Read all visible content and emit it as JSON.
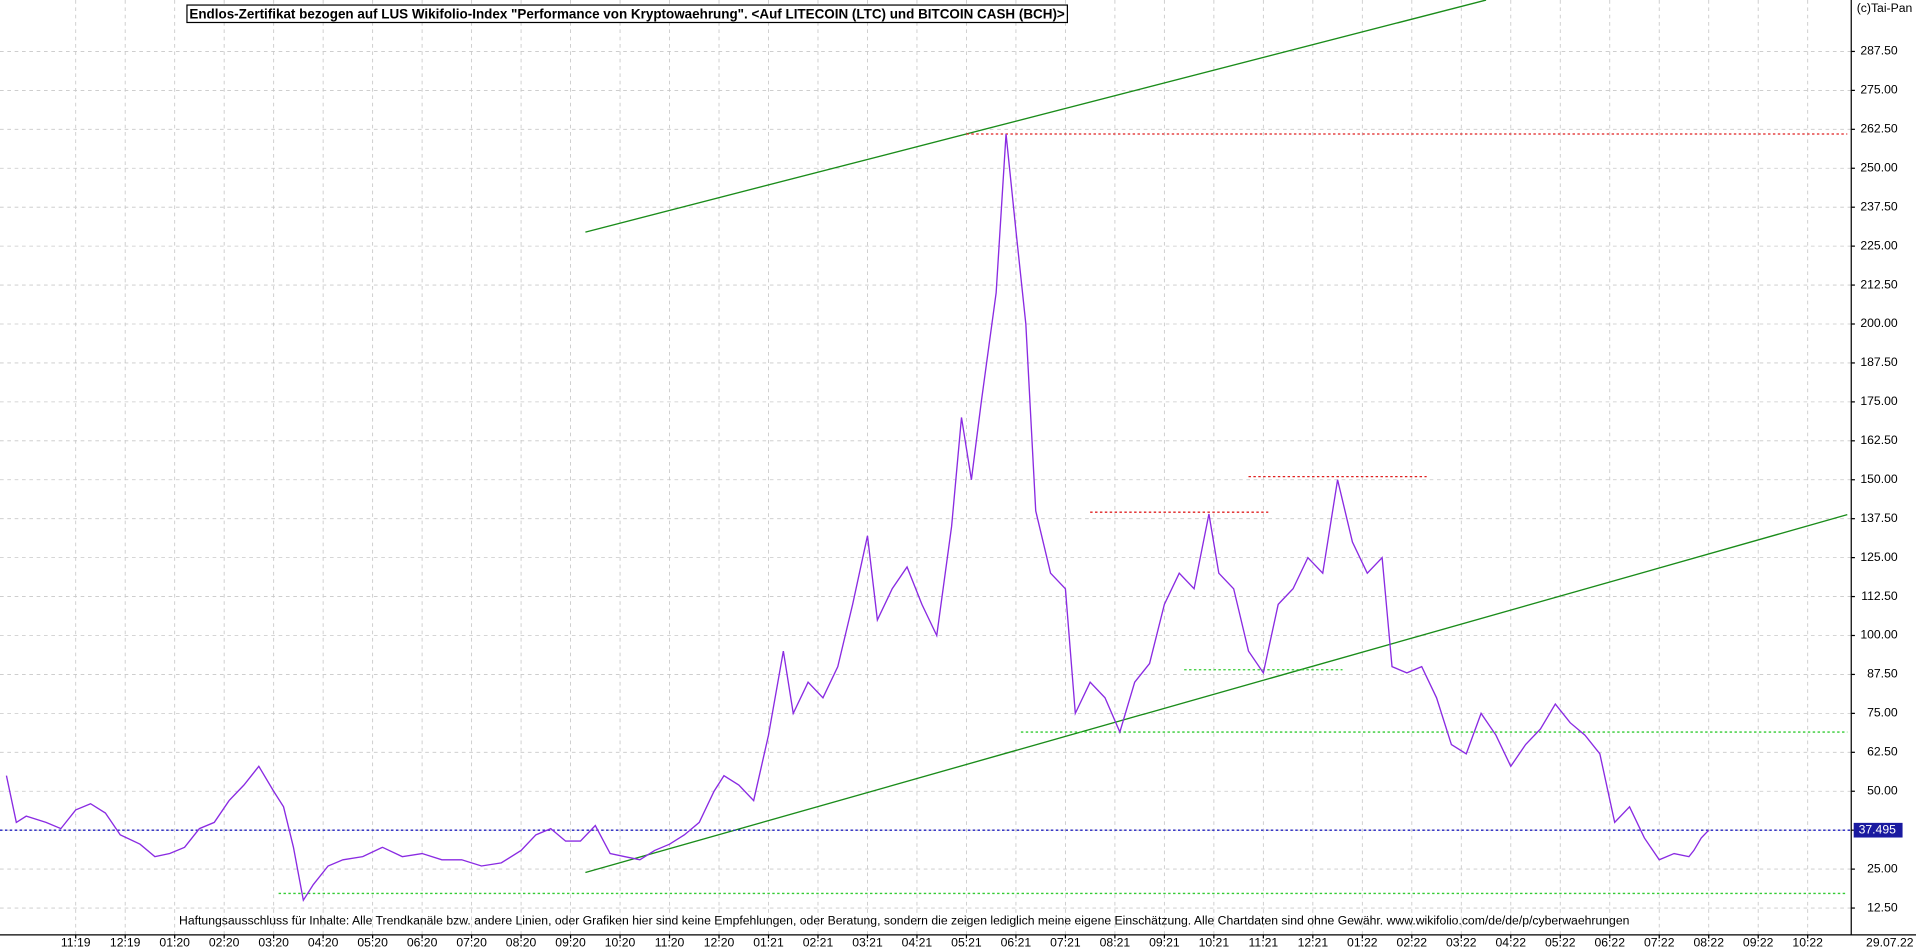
{
  "chart_data": {
    "type": "line",
    "title": "Endlos-Zertifikat bezogen auf LUS Wikifolio-Index \"Performance von Kryptowaehrung\". <Auf LITECOIN (LTC) und BITCOIN CASH (BCH)>",
    "copyright": "(c)Tai-Pan",
    "disclaimer": "Haftungsausschluss für Inhalte: Alle Trendkanäle bzw. andere Linien, oder Grafiken hier sind keine Empfehlungen, oder Beratung, sondern die zeigen lediglich meine eigene Einschätzung. Alle Chartdaten sind ohne Gewähr.  www.wikifolio.com/de/de/p/cyberwaehrungen",
    "date_label": "29.07.22",
    "last_value": {
      "value": 37.495,
      "label": "37.495"
    },
    "grid": true,
    "xlim": [
      -1.53,
      35.88
    ],
    "ylim": [
      3.9,
      304
    ],
    "xticks": [
      {
        "value": 0,
        "label": "11:19"
      },
      {
        "value": 1,
        "label": "12:19"
      },
      {
        "value": 2,
        "label": "01:20"
      },
      {
        "value": 3,
        "label": "02:20"
      },
      {
        "value": 4,
        "label": "03:20"
      },
      {
        "value": 5,
        "label": "04:20"
      },
      {
        "value": 6,
        "label": "05:20"
      },
      {
        "value": 7,
        "label": "06:20"
      },
      {
        "value": 8,
        "label": "07:20"
      },
      {
        "value": 9,
        "label": "08:20"
      },
      {
        "value": 10,
        "label": "09:20"
      },
      {
        "value": 11,
        "label": "10:20"
      },
      {
        "value": 12,
        "label": "11:20"
      },
      {
        "value": 13,
        "label": "12:20"
      },
      {
        "value": 14,
        "label": "01:21"
      },
      {
        "value": 15,
        "label": "02:21"
      },
      {
        "value": 16,
        "label": "03:21"
      },
      {
        "value": 17,
        "label": "04:21"
      },
      {
        "value": 18,
        "label": "05:21"
      },
      {
        "value": 19,
        "label": "06:21"
      },
      {
        "value": 20,
        "label": "07:21"
      },
      {
        "value": 21,
        "label": "08:21"
      },
      {
        "value": 22,
        "label": "09:21"
      },
      {
        "value": 23,
        "label": "10:21"
      },
      {
        "value": 24,
        "label": "11:21"
      },
      {
        "value": 25,
        "label": "12:21"
      },
      {
        "value": 26,
        "label": "01:22"
      },
      {
        "value": 27,
        "label": "02:22"
      },
      {
        "value": 28,
        "label": "03:22"
      },
      {
        "value": 29,
        "label": "04:22"
      },
      {
        "value": 30,
        "label": "05:22"
      },
      {
        "value": 31,
        "label": "06:22"
      },
      {
        "value": 32,
        "label": "07:22"
      },
      {
        "value": 33,
        "label": "08:22"
      },
      {
        "value": 34,
        "label": "09:22"
      },
      {
        "value": 35,
        "label": "10:22"
      }
    ],
    "yticks": [
      {
        "value": 12.5,
        "label": "12.50"
      },
      {
        "value": 25,
        "label": "25.00"
      },
      {
        "value": 37.5,
        "label": "37.50"
      },
      {
        "value": 50,
        "label": "50.00"
      },
      {
        "value": 62.5,
        "label": "62.50"
      },
      {
        "value": 75,
        "label": "75.00"
      },
      {
        "value": 87.5,
        "label": "87.50"
      },
      {
        "value": 100,
        "label": "100.00"
      },
      {
        "value": 112.5,
        "label": "112.50"
      },
      {
        "value": 125,
        "label": "125.00"
      },
      {
        "value": 137.5,
        "label": "137.50"
      },
      {
        "value": 150,
        "label": "150.00"
      },
      {
        "value": 162.5,
        "label": "162.50"
      },
      {
        "value": 175,
        "label": "175.00"
      },
      {
        "value": 187.5,
        "label": "187.50"
      },
      {
        "value": 200,
        "label": "200.00"
      },
      {
        "value": 212.5,
        "label": "212.50"
      },
      {
        "value": 225,
        "label": "225.00"
      },
      {
        "value": 237.5,
        "label": "237.50"
      },
      {
        "value": 250,
        "label": "250.00"
      },
      {
        "value": 262.5,
        "label": "262.50"
      },
      {
        "value": 275,
        "label": "275.00"
      },
      {
        "value": 287.5,
        "label": "287.50"
      }
    ],
    "series": [
      {
        "color": "#8a2be2",
        "x": [
          -1.4,
          -1.2,
          -1.0,
          -0.6,
          -0.3,
          0,
          0.3,
          0.6,
          0.9,
          1.3,
          1.6,
          1.9,
          2.2,
          2.5,
          2.8,
          3.1,
          3.4,
          3.7,
          4.0,
          4.2,
          4.4,
          4.6,
          4.8,
          5.1,
          5.4,
          5.8,
          6.2,
          6.6,
          7.0,
          7.4,
          7.8,
          8.2,
          8.6,
          9.0,
          9.3,
          9.6,
          9.9,
          10.2,
          10.5,
          10.8,
          11.1,
          11.4,
          11.7,
          12.0,
          12.3,
          12.6,
          12.9,
          13.1,
          13.4,
          13.7,
          14.0,
          14.3,
          14.5,
          14.8,
          15.1,
          15.4,
          15.7,
          16.0,
          16.2,
          16.5,
          16.8,
          17.1,
          17.4,
          17.7,
          17.9,
          18.1,
          18.3,
          18.6,
          18.8,
          19.0,
          19.2,
          19.4,
          19.7,
          20.0,
          20.2,
          20.5,
          20.8,
          21.1,
          21.4,
          21.7,
          22.0,
          22.3,
          22.6,
          22.9,
          23.1,
          23.4,
          23.7,
          24.0,
          24.3,
          24.6,
          24.9,
          25.2,
          25.5,
          25.8,
          26.1,
          26.4,
          26.6,
          26.9,
          27.2,
          27.5,
          27.8,
          28.1,
          28.4,
          28.7,
          29.0,
          29.3,
          29.6,
          29.9,
          30.2,
          30.5,
          30.8,
          31.1,
          31.4,
          31.7,
          32.0,
          32.3,
          32.6,
          32.7,
          32.85,
          33.0
        ],
        "values": [
          55,
          40,
          42,
          40,
          38,
          44,
          46,
          43,
          36,
          33,
          29,
          30,
          32,
          38,
          40,
          47,
          52,
          58,
          50,
          45,
          32,
          15,
          20,
          26,
          28,
          29,
          32,
          29,
          30,
          28,
          28,
          26,
          27,
          31,
          36,
          38,
          34,
          34,
          39,
          30,
          29,
          28,
          31,
          33,
          36,
          40,
          50,
          55,
          52,
          47,
          68,
          95,
          75,
          85,
          80,
          90,
          110,
          132,
          105,
          115,
          122,
          110,
          100,
          135,
          170,
          150,
          175,
          210,
          261,
          230,
          200,
          140,
          120,
          115,
          75,
          85,
          80,
          69,
          85,
          91,
          110,
          120,
          115,
          139,
          120,
          115,
          95,
          88,
          110,
          115,
          125,
          120,
          150,
          130,
          120,
          125,
          90,
          88,
          90,
          80,
          65,
          62,
          75,
          68,
          58,
          65,
          70,
          78,
          72,
          68,
          62,
          40,
          45,
          35,
          28,
          30,
          29,
          31,
          35,
          37.495
        ]
      }
    ],
    "trendlines": [
      {
        "color": "#1a8c1a",
        "dash": false,
        "x": [
          10.3,
          28.5
        ],
        "y": [
          229.5,
          304
        ]
      },
      {
        "color": "#1a8c1a",
        "dash": false,
        "x": [
          10.3,
          35.8
        ],
        "y": [
          23.9,
          138.8
        ]
      },
      {
        "color": "#e02020",
        "dash": true,
        "x": [
          18.0,
          35.8
        ],
        "y": [
          261,
          261
        ]
      },
      {
        "color": "#e02020",
        "dash": true,
        "x": [
          20.5,
          24.1
        ],
        "y": [
          139.6,
          139.6
        ]
      },
      {
        "color": "#e02020",
        "dash": true,
        "x": [
          23.7,
          27.3
        ],
        "y": [
          151,
          151
        ]
      },
      {
        "color": "#33cc33",
        "dash": true,
        "x": [
          22.4,
          25.6
        ],
        "y": [
          89,
          89
        ]
      },
      {
        "color": "#33cc33",
        "dash": true,
        "x": [
          19.1,
          35.8
        ],
        "y": [
          69,
          69
        ]
      },
      {
        "color": "#33cc33",
        "dash": true,
        "x": [
          4.1,
          35.8
        ],
        "y": [
          17.2,
          17.2
        ]
      },
      {
        "color": "#2020c0",
        "dash": true,
        "x": [
          -1.53,
          35.88
        ],
        "y": [
          37.495,
          37.495
        ]
      }
    ]
  }
}
